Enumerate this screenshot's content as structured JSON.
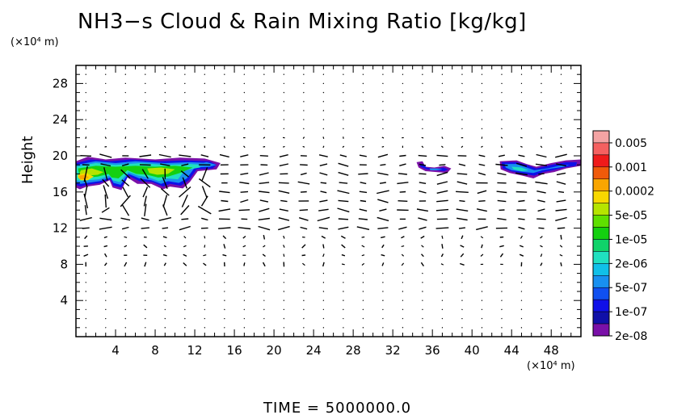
{
  "chart_data": {
    "type": "heatmap",
    "title": "NH3−s Cloud & Rain Mixing Ratio [kg/kg]",
    "ylabel": "Height",
    "y_unit": "(×10⁴ m)",
    "x_unit": "(×10⁴ m)",
    "footer": "TIME  =  5000000.0",
    "xlim": [
      0,
      51
    ],
    "ylim": [
      0,
      30
    ],
    "x_ticks": [
      4,
      8,
      12,
      16,
      20,
      24,
      28,
      32,
      36,
      40,
      44,
      48
    ],
    "y_ticks": [
      4,
      8,
      12,
      16,
      20,
      24,
      28
    ],
    "colorbar": {
      "labels": [
        "0.005",
        "0.001",
        "0.0002",
        "5e-05",
        "1e-05",
        "2e-06",
        "5e-07",
        "1e-07",
        "2e-08"
      ],
      "colors": [
        "#f4a3a3",
        "#f56060",
        "#ef1a1a",
        "#f05a0a",
        "#f9a500",
        "#f8d800",
        "#b6e400",
        "#5fe000",
        "#14d010",
        "#10d36a",
        "#20e0c0",
        "#10c0e8",
        "#1890f0",
        "#1050f0",
        "#1010e8",
        "#1010a8",
        "#7a10a8"
      ]
    },
    "vector_field": "wind arrows",
    "cloud_regions": [
      {
        "x_range": [
          0,
          15
        ],
        "y_range": [
          16.2,
          20
        ],
        "max_level": "0.0002"
      },
      {
        "x_range": [
          34.5,
          38
        ],
        "y_range": [
          18.2,
          19.4
        ],
        "max_level": "2e-06"
      },
      {
        "x_range": [
          43,
          51
        ],
        "y_range": [
          17.5,
          19.6
        ],
        "max_level": "5e-07"
      }
    ]
  }
}
